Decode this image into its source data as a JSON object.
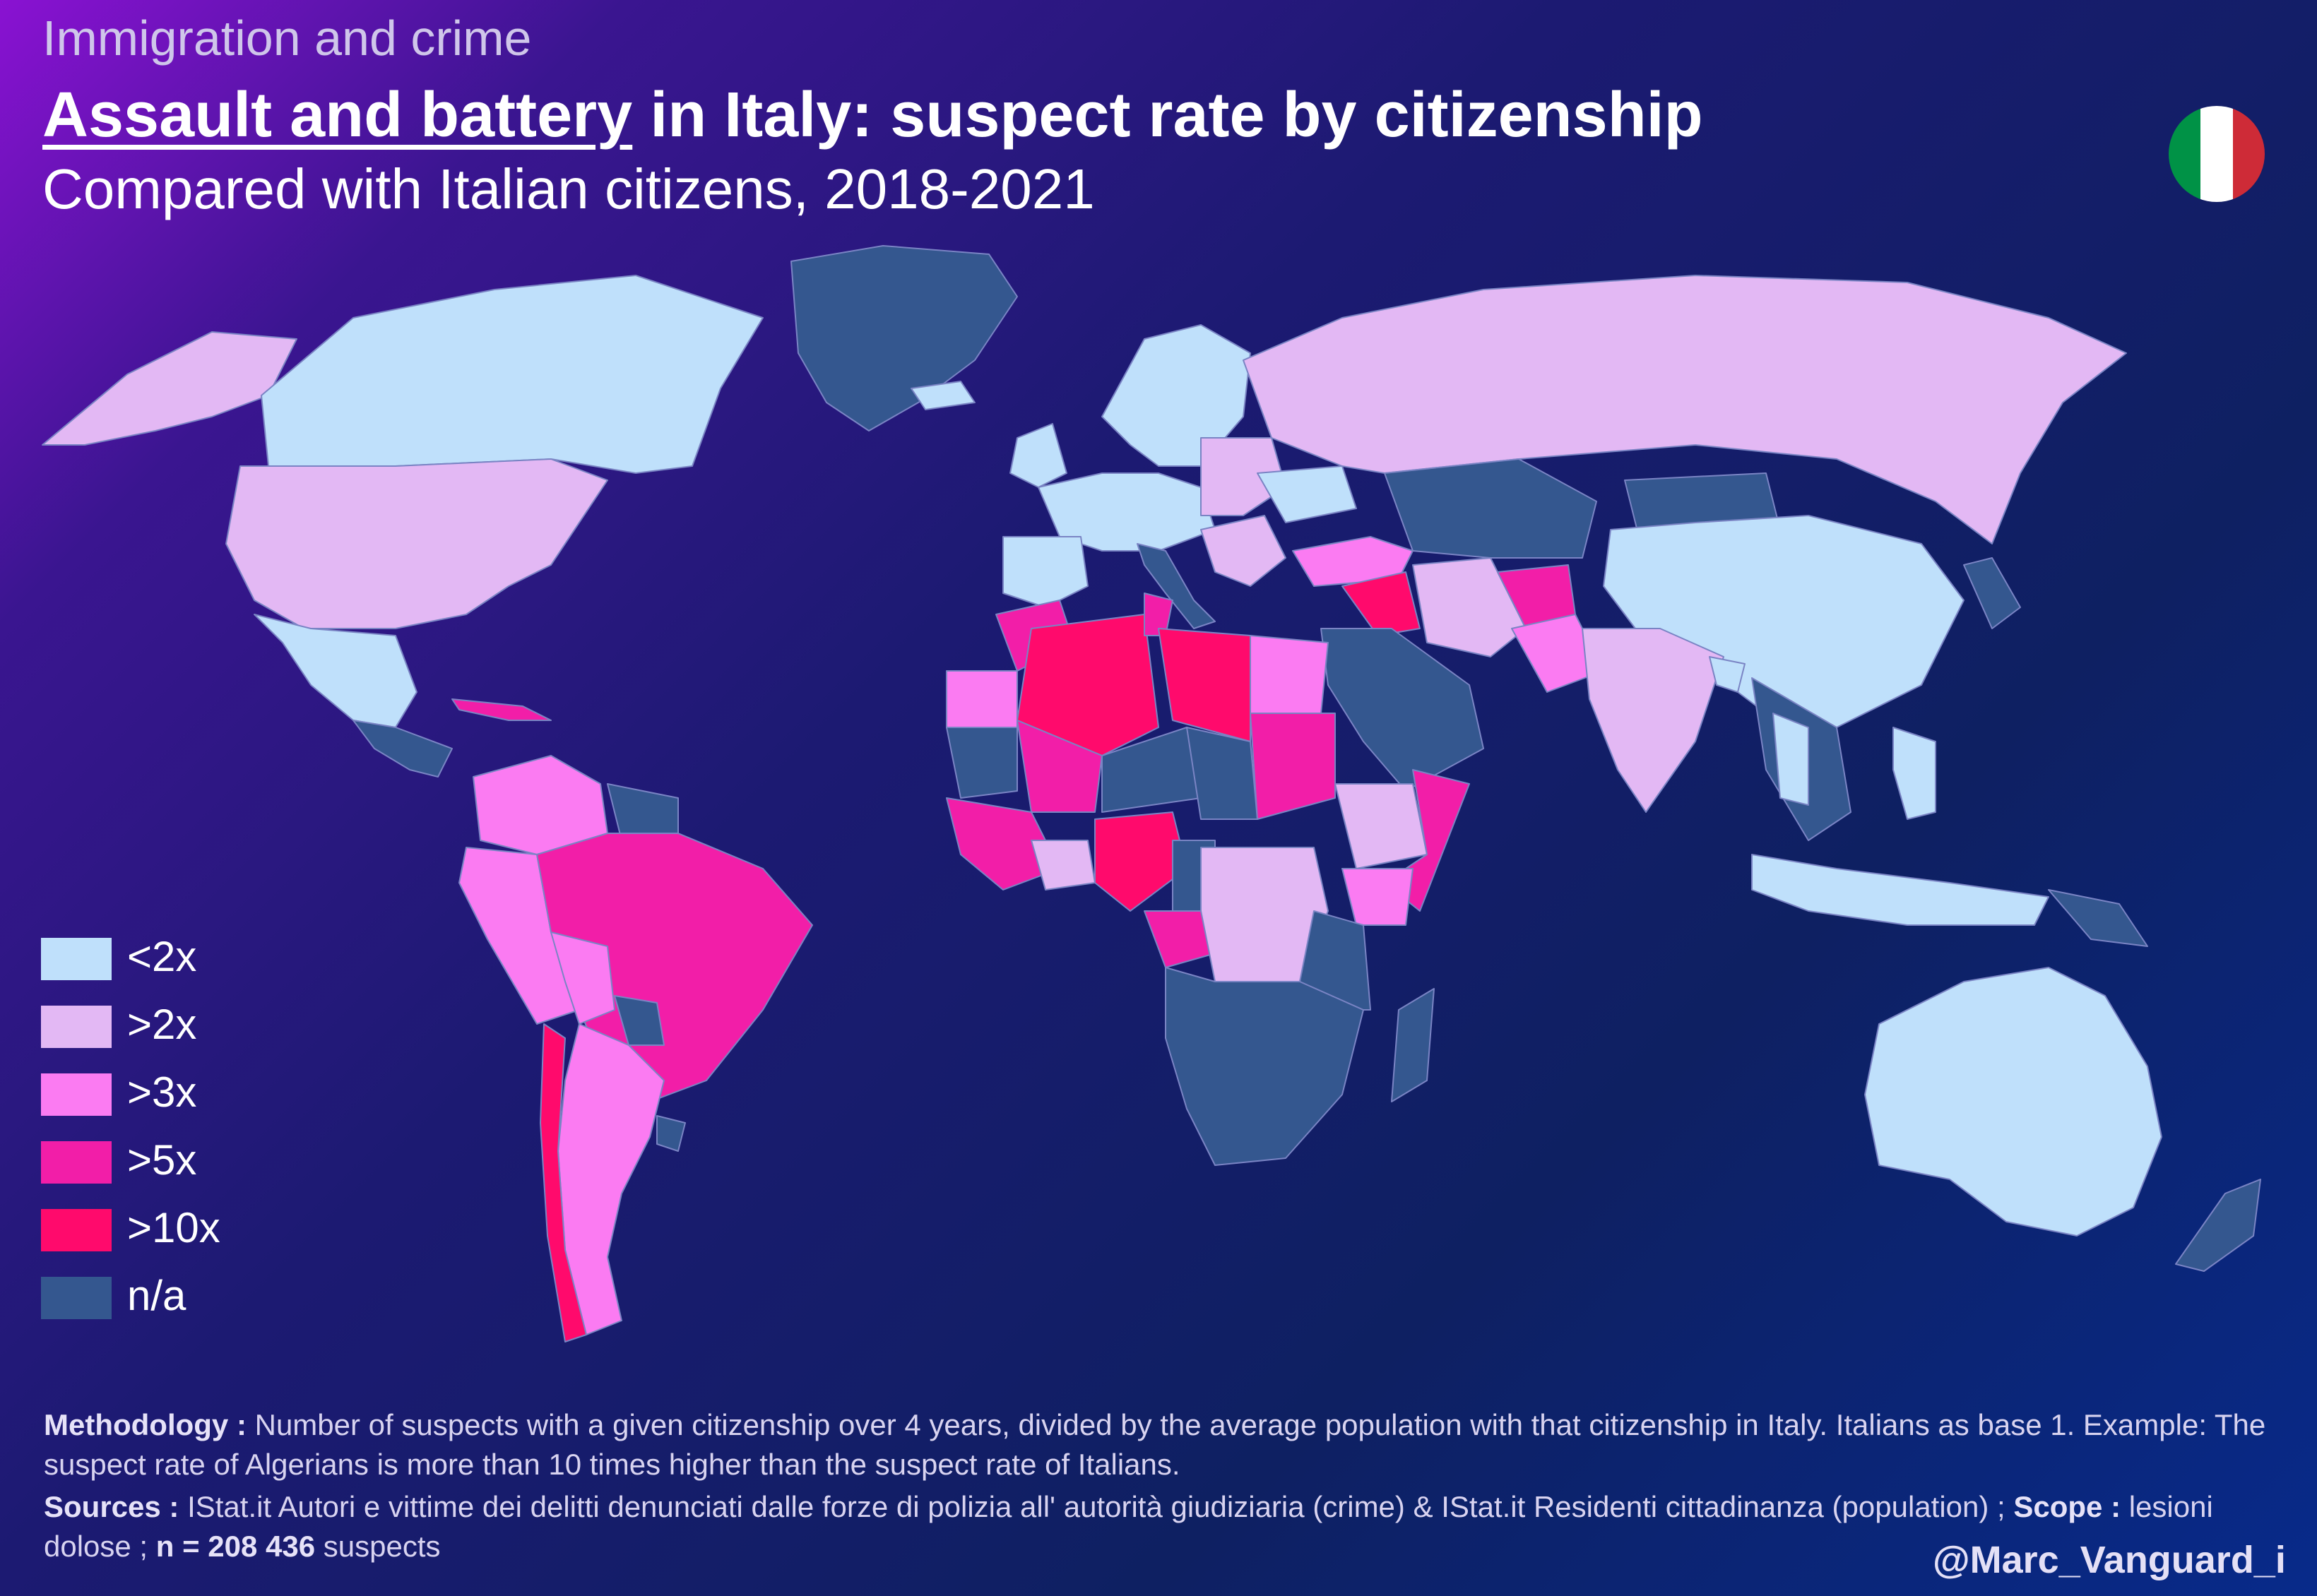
{
  "header": {
    "kicker": "Immigration and crime",
    "title_underlined": "Assault and battery",
    "title_rest": " in Italy: suspect rate by citizenship",
    "subtitle": "Compared with Italian citizens, 2018-2021"
  },
  "flag": {
    "colors": [
      "#009246",
      "#ffffff",
      "#ce2b37"
    ]
  },
  "legend": [
    {
      "label": "<2x",
      "color": "#bfe0fb"
    },
    {
      "label": ">2x",
      "color": "#e3b8f4"
    },
    {
      "label": ">3x",
      "color": "#fb7bf2"
    },
    {
      "label": ">5x",
      "color": "#f21ea8"
    },
    {
      "label": ">10x",
      "color": "#ff0a6c"
    },
    {
      "label": "n/a",
      "color": "#34578f"
    }
  ],
  "footer": {
    "methodology_label": "Methodology :",
    "methodology_text": " Number of suspects with a given citizenship over 4 years, divided by the average population with that citizenship in Italy. Italians as base 1. Example: The suspect rate of Algerians is more than 10 times higher than the suspect rate of Italians.",
    "sources_label": "Sources :",
    "sources_text": " IStat.it Autori e vittime dei delitti denunciati dalle forze di polizia all' autorità giudiziaria (crime) & IStat.it Residenti cittadinanza (population) ; ",
    "scope_label": "Scope :",
    "scope_text": " lesioni dolose ; ",
    "n_label": "n = 208 436",
    "n_text": " suspects",
    "credit": "@Marc_Vanguard_i"
  }
}
